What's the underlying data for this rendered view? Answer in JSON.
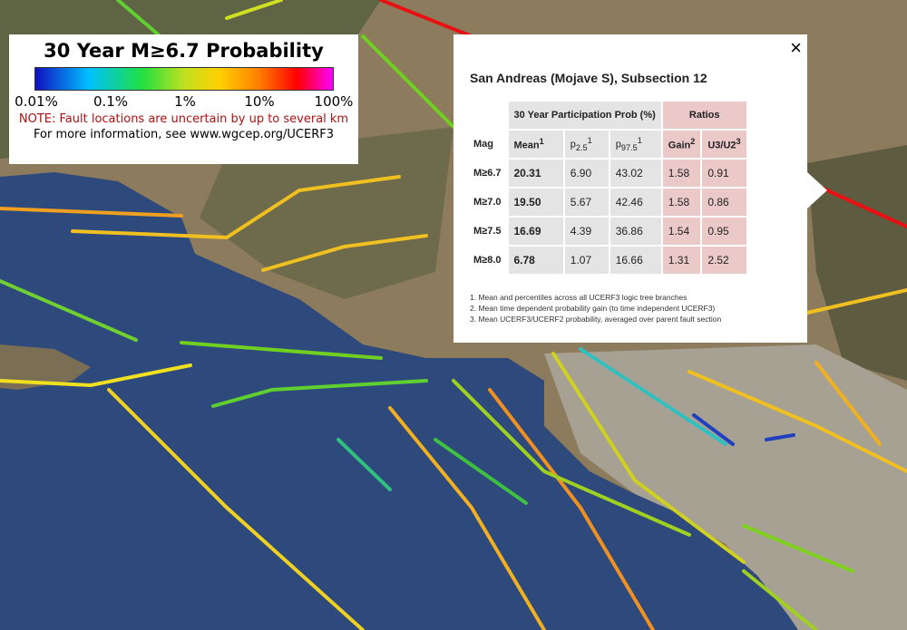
{
  "legend": {
    "title": "30 Year M≥6.7 Probability",
    "scale_labels": [
      "0.01%",
      "0.1%",
      "1%",
      "10%",
      "100%"
    ],
    "note": "NOTE: Fault locations are uncertain by up to several km",
    "info": "For more information, see www.wgcep.org/UCERF3"
  },
  "popup": {
    "close": "×",
    "title": "San Andreas (Mojave S), Subsection 12",
    "group_headers": [
      "30 Year Participation Prob (%)",
      "Ratios"
    ],
    "columns": [
      {
        "text": "Mag"
      },
      {
        "text": "Mean",
        "sup": "1"
      },
      {
        "text": "p",
        "sub": "2.5",
        "sup": "1"
      },
      {
        "text": "p",
        "sub": "97.5",
        "sup": "1"
      },
      {
        "text": "Gain",
        "sup": "2"
      },
      {
        "text": "U3/U2",
        "sup": "3"
      }
    ],
    "rows": [
      [
        "M≥6.7",
        "20.31",
        "6.90",
        "43.02",
        "1.58",
        "0.91"
      ],
      [
        "M≥7.0",
        "19.50",
        "5.67",
        "42.46",
        "1.58",
        "0.86"
      ],
      [
        "M≥7.5",
        "16.69",
        "4.39",
        "36.86",
        "1.54",
        "0.95"
      ],
      [
        "M≥8.0",
        "6.78",
        "1.07",
        "16.66",
        "1.31",
        "2.52"
      ]
    ],
    "footnotes": [
      "1. Mean and percentiles across all UCERF3 logic tree branches",
      "2. Mean time dependent probability gain (to time independent UCERF3)",
      "3. Mean UCERF3/UCERF2 probability, averaged over parent fault section"
    ]
  }
}
